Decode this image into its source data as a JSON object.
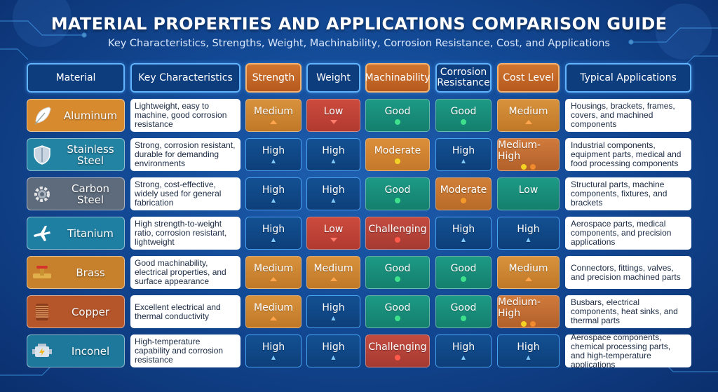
{
  "title": "MATERIAL PROPERTIES AND APPLICATIONS COMPARISON GUIDE",
  "subtitle": "Key Characteristics, Strengths, Weight, Machinability, Corrosion Resistance, Cost, and Applications",
  "headers": {
    "material": "Material",
    "characteristics": "Key Characteristics",
    "strength": "Strength",
    "weight": "Weight",
    "machinability": "Machinability",
    "corrosion_line1": "Corrosion",
    "corrosion_line2": "Resistance",
    "cost": "Cost Level",
    "applications": "Typical Applications"
  },
  "colors": {
    "background": "#134a96",
    "header_blue": "#0e3d7e",
    "header_orange": "#c7672a",
    "good_green": "#1c9a85",
    "medium_orange": "#d8923d",
    "low_red": "#cc4b3e",
    "high_blue": "#135092"
  },
  "materials": [
    {
      "name_line1": "Aluminum",
      "name_line2": "",
      "icon": "feather-icon",
      "tile_color": "#d88a2e",
      "characteristics": "Lightweight, easy to machine, good corrosion resistance",
      "strength": "Medium",
      "weight": "Low",
      "machinability": "Good",
      "corrosion": "Good",
      "cost": "Medium",
      "applications": "Housings, brackets, frames, covers, and machined components"
    },
    {
      "name_line1": "Stainless",
      "name_line2": "Steel",
      "icon": "shield-icon",
      "tile_color": "#2383a3",
      "characteristics": "Strong, corrosion resistant, durable for demanding environments",
      "strength": "High",
      "weight": "High",
      "machinability": "Moderate",
      "corrosion": "High",
      "cost": "Medium-High",
      "applications": "Industrial components, equipment parts, medical and food processing components"
    },
    {
      "name_line1": "Carbon",
      "name_line2": "Steel",
      "icon": "gear-icon",
      "tile_color": "#5d6b7c",
      "characteristics": "Strong, cost-effective, widely used for general fabrication",
      "strength": "High",
      "weight": "High",
      "machinability": "Good",
      "corrosion": "Moderate",
      "cost": "Low",
      "applications": "Structural parts, machine components, fixtures, and brackets"
    },
    {
      "name_line1": "Titanium",
      "name_line2": "",
      "icon": "airplane-icon",
      "tile_color": "#1f7fa3",
      "characteristics": "High strength-to-weight ratio, corrosion resistant, lightweight",
      "strength": "High",
      "weight": "Low",
      "machinability": "Challenging",
      "corrosion": "High",
      "cost": "High",
      "applications": "Aerospace parts, medical components, and precision applications"
    },
    {
      "name_line1": "Brass",
      "name_line2": "",
      "icon": "valve-icon",
      "tile_color": "#c7802c",
      "characteristics": "Good machinability, electrical properties, and surface appearance",
      "strength": "Medium",
      "weight": "Medium",
      "machinability": "Good",
      "corrosion": "Good",
      "cost": "Medium",
      "applications": "Connectors, fittings, valves, and precision machined parts"
    },
    {
      "name_line1": "Copper",
      "name_line2": "",
      "icon": "coil-icon",
      "tile_color": "#b5552a",
      "characteristics": "Excellent electrical and thermal conductivity",
      "strength": "Medium",
      "weight": "High",
      "machinability": "Good",
      "corrosion": "Good",
      "cost": "Medium-High",
      "applications": "Busbars, electrical components, heat sinks, and thermal parts"
    },
    {
      "name_line1": "Inconel",
      "name_line2": "",
      "icon": "engine-icon",
      "tile_color": "#1d789b",
      "characteristics": "High-temperature capability and corrosion resistance",
      "strength": "High",
      "weight": "High",
      "machinability": "Challenging",
      "corrosion": "High",
      "cost": "High",
      "applications": "Aerospace components, chemical processing parts, and high-temperature applications"
    }
  ]
}
